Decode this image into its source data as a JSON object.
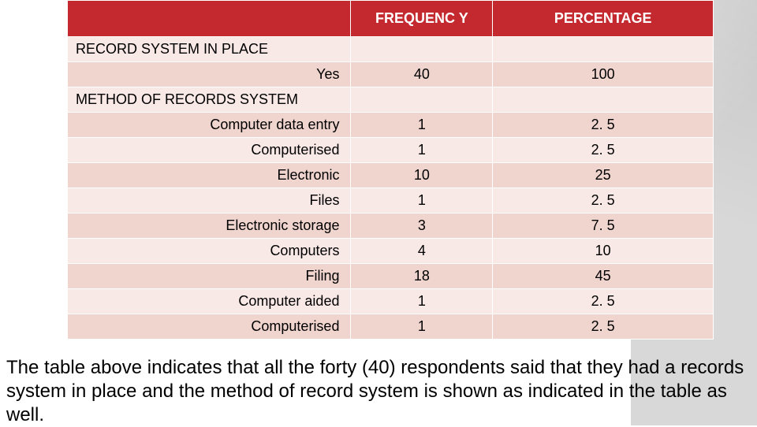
{
  "table": {
    "headers": {
      "col1": "",
      "col2": "FREQUENC Y",
      "col3": "PERCENTAGE"
    },
    "section1_title": "RECORD SYSTEM IN PLACE",
    "section1_rows": [
      {
        "label": "Yes",
        "freq": "40",
        "pct": "100"
      }
    ],
    "section2_title": "METHOD OF RECORDS SYSTEM",
    "section2_rows": [
      {
        "label": "Computer data entry",
        "freq": "1",
        "pct": "2. 5"
      },
      {
        "label": "Computerised",
        "freq": "1",
        "pct": "2. 5"
      },
      {
        "label": "Electronic",
        "freq": "10",
        "pct": "25"
      },
      {
        "label": "Files",
        "freq": "1",
        "pct": "2. 5"
      },
      {
        "label": "Electronic storage",
        "freq": "3",
        "pct": "7. 5"
      },
      {
        "label": "Computers",
        "freq": "4",
        "pct": "10"
      },
      {
        "label": "Filing",
        "freq": "18",
        "pct": "45"
      },
      {
        "label": "Computer aided",
        "freq": "1",
        "pct": "2. 5"
      },
      {
        "label": "Computerised",
        "freq": "1",
        "pct": "2. 5"
      }
    ],
    "colors": {
      "header_bg": "#c3292f",
      "header_fg": "#ffffff",
      "row_light": "#f8e8e6",
      "row_dark": "#f0d4ce",
      "border": "#ffffff"
    }
  },
  "caption_text": "The table above indicates that all the forty (40) respondents said that they had a records system in place and the method of record system is shown as indicated in the table as well."
}
